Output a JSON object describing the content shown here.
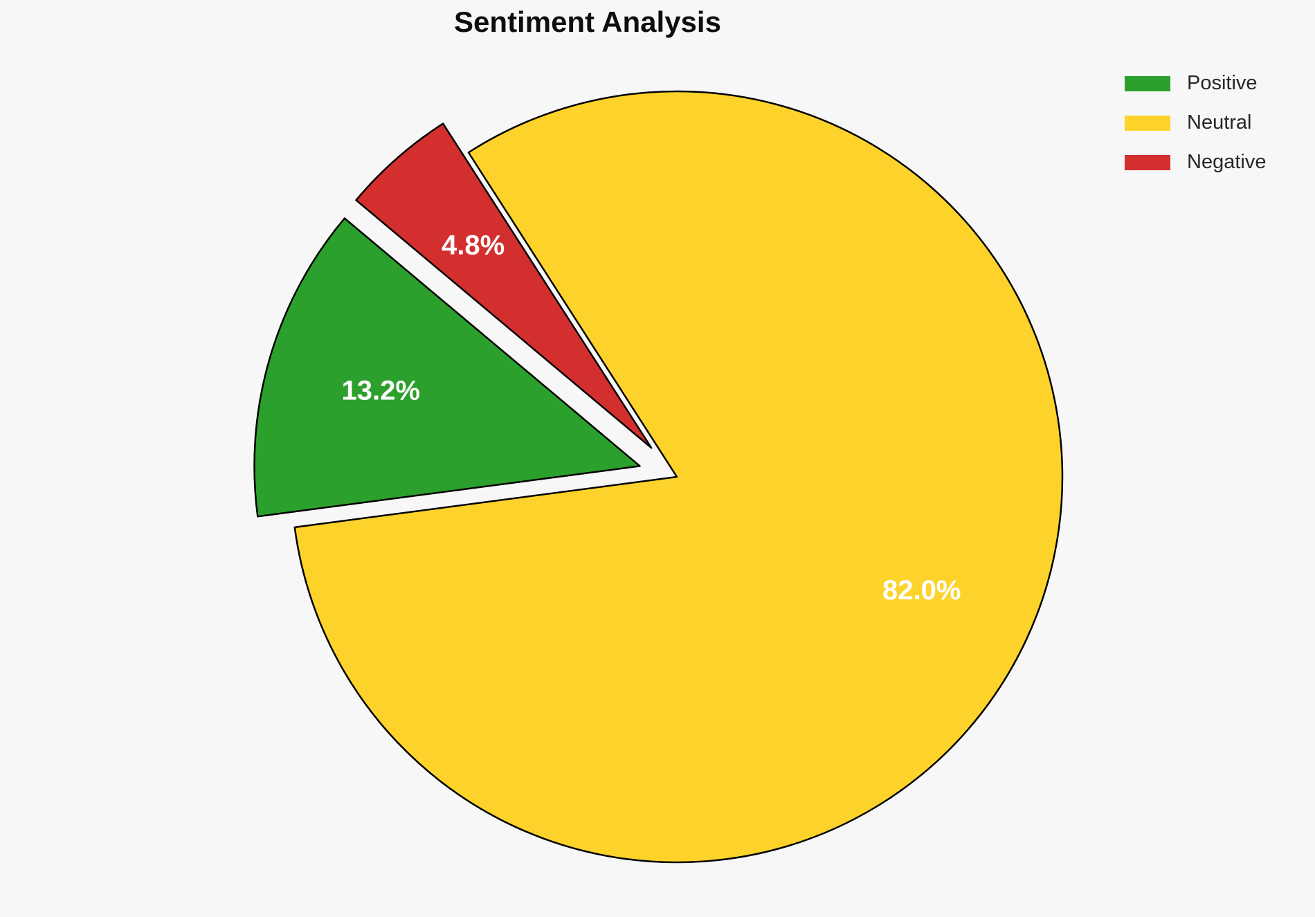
{
  "title": "Sentiment Analysis",
  "background_color": "#f7f7f7",
  "title_color": "#0e0e0e",
  "legend": {
    "position": "upper right",
    "text_color": "#262626",
    "items": [
      {
        "label": "Positive",
        "color": "#2CA02C"
      },
      {
        "label": "Neutral",
        "color": "#FDD32B"
      },
      {
        "label": "Negative",
        "color": "#D32F2F"
      }
    ]
  },
  "chart_data": {
    "type": "pie",
    "title": "Sentiment Analysis",
    "labels": [
      "Positive",
      "Neutral",
      "Negative"
    ],
    "values": [
      13.2,
      82.0,
      4.8
    ],
    "pct_labels": [
      "13.2%",
      "82.0%",
      "4.8%"
    ],
    "colors": [
      "#2CA02C",
      "#FDD32B",
      "#D32F2F"
    ],
    "explode": [
      0.1,
      0,
      0.1
    ],
    "start_angle": 140,
    "counterclock": true,
    "edge_color": "#000000",
    "edge_width": 2.5,
    "pct_distance": 0.7,
    "pct_color": "#ffffff",
    "legend_position": "upper right",
    "grid": false,
    "center": [
      978,
      689
    ],
    "radius": 557
  }
}
